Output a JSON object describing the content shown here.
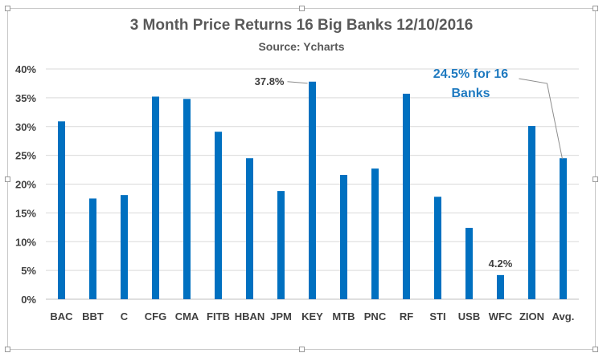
{
  "chart_data": {
    "type": "bar",
    "title": "3 Month Price Returns 16 Big Banks 12/10/2016",
    "subtitle": "Source: Ycharts",
    "xlabel": "",
    "ylabel": "",
    "categories": [
      "BAC",
      "BBT",
      "C",
      "CFG",
      "CMA",
      "FITB",
      "HBAN",
      "JPM",
      "KEY",
      "MTB",
      "PNC",
      "RF",
      "STI",
      "USB",
      "WFC",
      "ZION",
      "Avg."
    ],
    "values": [
      30.9,
      17.5,
      18.1,
      35.2,
      34.8,
      29.1,
      24.5,
      18.8,
      37.8,
      21.6,
      22.7,
      35.7,
      17.8,
      12.4,
      4.2,
      30.1,
      24.5
    ],
    "ylim": [
      0,
      40
    ],
    "yticks": [
      "0%",
      "5%",
      "10%",
      "15%",
      "20%",
      "25%",
      "30%",
      "35%",
      "40%"
    ],
    "ytick_values": [
      0,
      5,
      10,
      15,
      20,
      25,
      30,
      35,
      40
    ],
    "grid": true,
    "legend": "none",
    "bar_color": "#0070c0",
    "annotations": [
      {
        "category": "KEY",
        "text": "37.8%"
      },
      {
        "category": "WFC",
        "text": "4.2%"
      },
      {
        "category": "Avg.",
        "lines": [
          "24.5% for 16",
          "Banks"
        ]
      }
    ]
  }
}
